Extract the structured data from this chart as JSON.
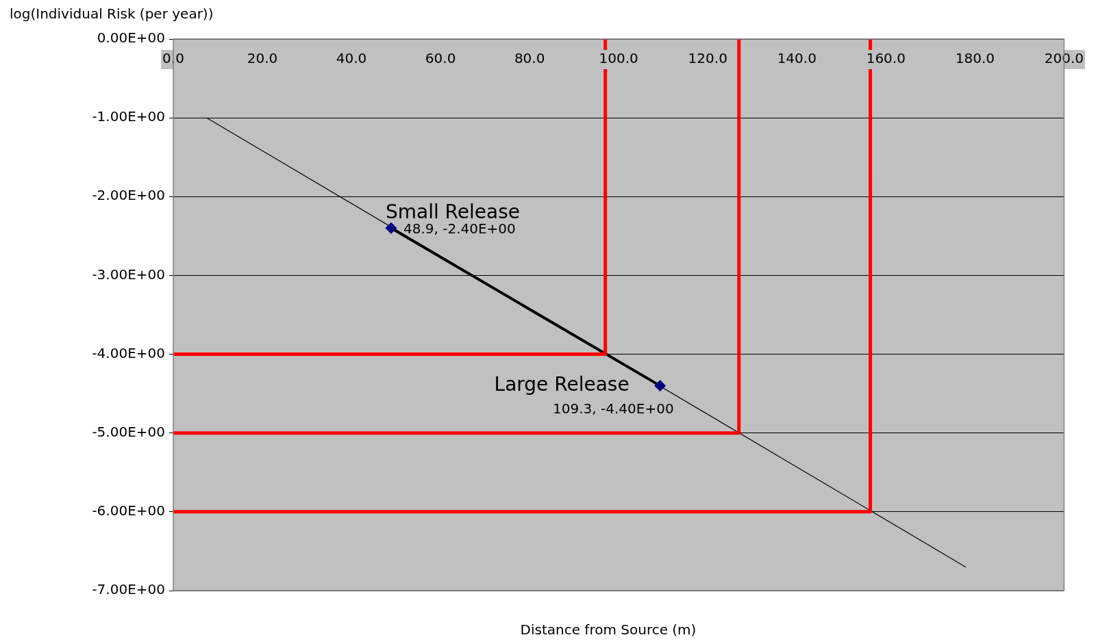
{
  "chart_data": {
    "type": "line",
    "xlabel": "Distance from Source (m)",
    "ylabel": "log(Individual Risk (per year))",
    "xlim": [
      0,
      200
    ],
    "xticks": [
      {
        "value": 0,
        "label": "0.0"
      },
      {
        "value": 20,
        "label": "20.0"
      },
      {
        "value": 40,
        "label": "40.0"
      },
      {
        "value": 60,
        "label": "60.0"
      },
      {
        "value": 80,
        "label": "80.0"
      },
      {
        "value": 100,
        "label": "100.0"
      },
      {
        "value": 120,
        "label": "120.0"
      },
      {
        "value": 140,
        "label": "140.0"
      },
      {
        "value": 160,
        "label": "160.0"
      },
      {
        "value": 180,
        "label": "180.0"
      },
      {
        "value": 200,
        "label": "200.0"
      }
    ],
    "ylim": [
      -7,
      0
    ],
    "yticks": [
      {
        "value": 0,
        "label": "0.00E+00"
      },
      {
        "value": -1,
        "label": "-1.00E+00"
      },
      {
        "value": -2,
        "label": "-2.00E+00"
      },
      {
        "value": -3,
        "label": "-3.00E+00"
      },
      {
        "value": -4,
        "label": "-4.00E+00"
      },
      {
        "value": -5,
        "label": "-5.00E+00"
      },
      {
        "value": -6,
        "label": "-6.00E+00"
      },
      {
        "value": -7,
        "label": "-7.00E+00"
      }
    ],
    "grid": "y",
    "legend": false,
    "series": [
      {
        "color": "#000000",
        "x": [
          7.5,
          177.9
        ],
        "values": [
          -1.0,
          -6.7
        ],
        "marker": "none"
      },
      {
        "color": "#000000",
        "x": [
          48.9,
          109.3
        ],
        "values": [
          -2.4,
          -4.4
        ],
        "marker": "none"
      },
      {
        "color": "#ff0000",
        "x": [
          0,
          97,
          97
        ],
        "values": [
          -4,
          -4,
          0
        ],
        "marker": "none"
      },
      {
        "color": "#ff0000",
        "x": [
          0,
          127,
          127
        ],
        "values": [
          -5,
          -5,
          0
        ],
        "marker": "none"
      },
      {
        "color": "#ff0000",
        "x": [
          0,
          156.5,
          156.5
        ],
        "values": [
          -6,
          -6,
          0
        ],
        "marker": "none"
      },
      {
        "type": "scatter",
        "name": "Small Release",
        "color": "#000080",
        "x": [
          48.9
        ],
        "values": [
          -2.4
        ],
        "marker": "diamond",
        "value_labels": [
          "48.9, -2.40E+00"
        ]
      },
      {
        "type": "scatter",
        "name": "Large Release",
        "color": "#000080",
        "x": [
          109.3
        ],
        "values": [
          -4.4
        ],
        "marker": "diamond",
        "value_labels": [
          "109.3, -4.40E+00"
        ]
      }
    ]
  }
}
